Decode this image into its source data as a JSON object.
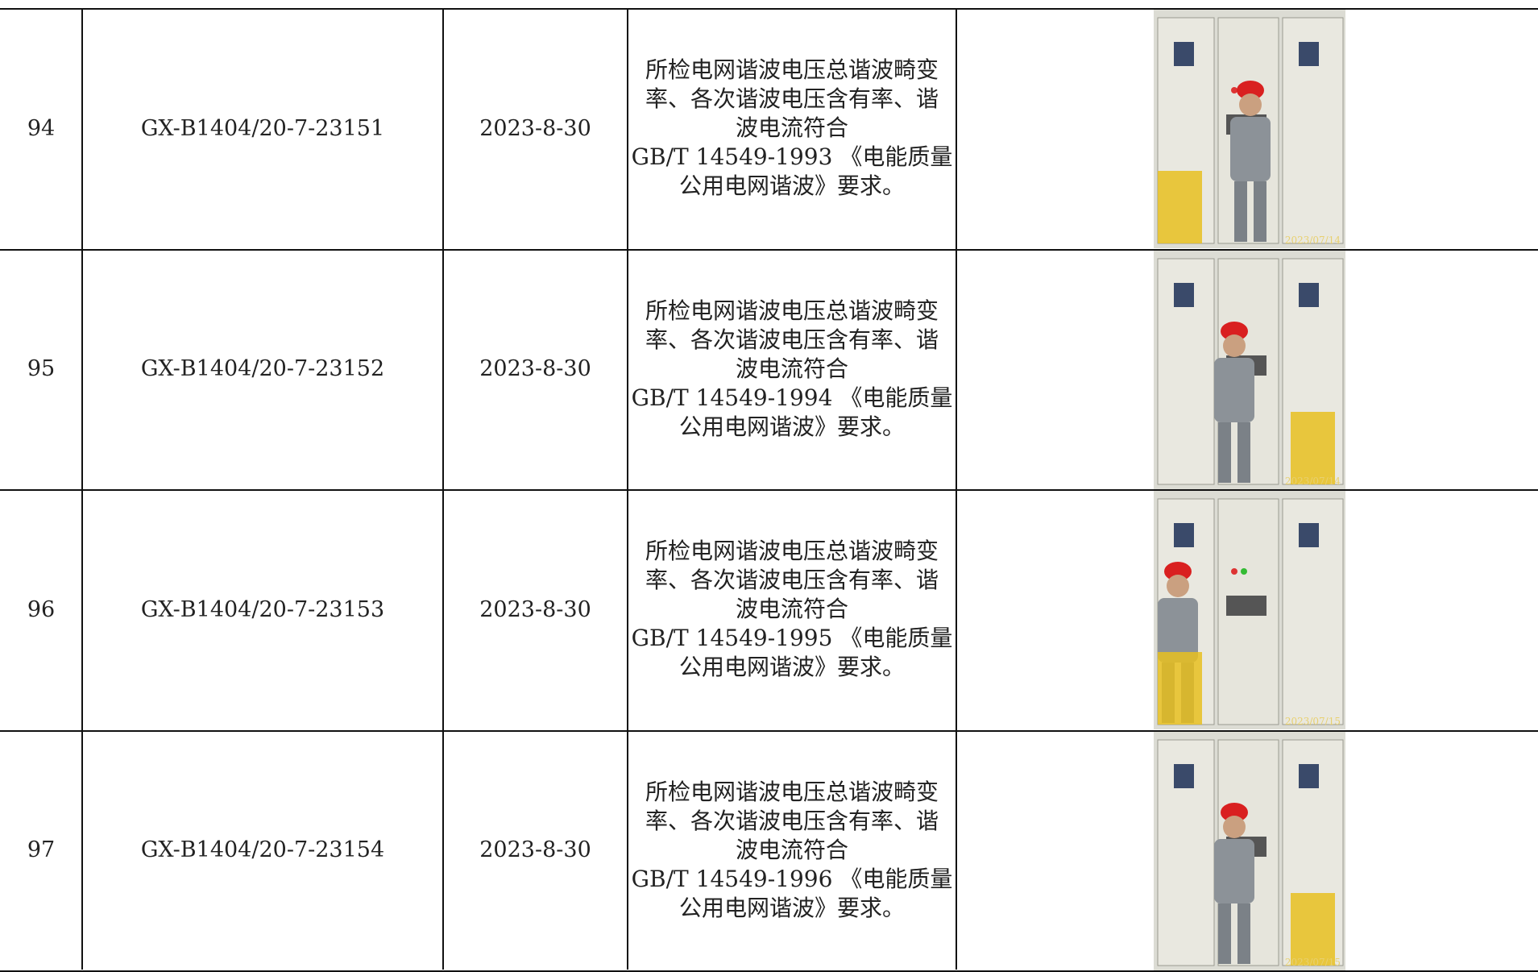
{
  "table": {
    "rows": [
      {
        "no": "94",
        "code": "GX-B1404/20-7-23151",
        "date": "2023-8-30",
        "desc": [
          "所检电网谐波电压总谐波畸变",
          "率、各次谐波电压含有率、谐",
          "波电流符合",
          "GB/T 14549-1993 《电能质量",
          "公用电网谐波》要求。"
        ],
        "stamp": "2023/07/14"
      },
      {
        "no": "95",
        "code": "GX-B1404/20-7-23152",
        "date": "2023-8-30",
        "desc": [
          "所检电网谐波电压总谐波畸变",
          "率、各次谐波电压含有率、谐",
          "波电流符合",
          "GB/T 14549-1994 《电能质量",
          "公用电网谐波》要求。"
        ],
        "stamp": "2023/07/14"
      },
      {
        "no": "96",
        "code": "GX-B1404/20-7-23153",
        "date": "2023-8-30",
        "desc": [
          "所检电网谐波电压总谐波畸变",
          "率、各次谐波电压含有率、谐",
          "波电流符合",
          "GB/T 14549-1995 《电能质量",
          "公用电网谐波》要求。"
        ],
        "stamp": "2023/07/15"
      },
      {
        "no": "97",
        "code": "GX-B1404/20-7-23154",
        "date": "2023-8-30",
        "desc": [
          "所检电网谐波电压总谐波畸变",
          "率、各次谐波电压含有率、谐",
          "波电流符合",
          "GB/T 14549-1996 《电能质量",
          "公用电网谐波》要求。"
        ],
        "stamp": "2023/07/15"
      }
    ]
  }
}
